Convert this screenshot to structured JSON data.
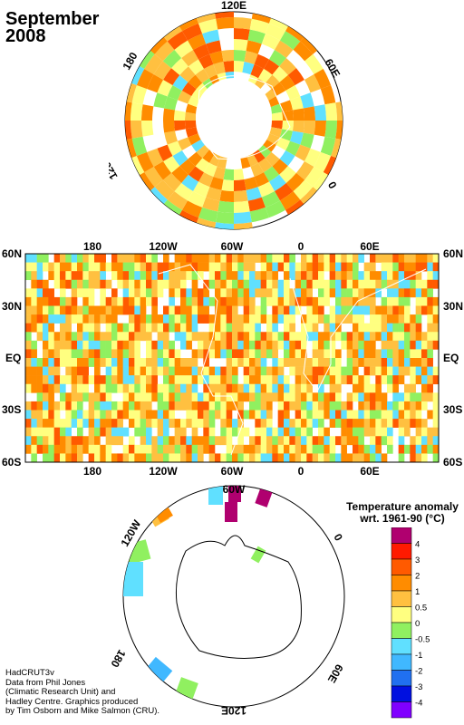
{
  "header": {
    "title_line1": "September",
    "title_line2": "2008"
  },
  "north_polar": {
    "labels": {
      "top": "120E",
      "left": "180",
      "right": "60E",
      "lower_left": "120W",
      "lower_right": "0"
    }
  },
  "equatorial": {
    "lon_labels": [
      "180",
      "120W",
      "60W",
      "0",
      "60E"
    ],
    "lat_labels": [
      "60N",
      "30N",
      "EQ",
      "30S",
      "60S"
    ]
  },
  "south_polar": {
    "labels": {
      "top": "60W",
      "upper_left": "120W",
      "right": "0",
      "lower_left": "180",
      "lower_right": "60E",
      "bottom": "120E"
    }
  },
  "legend": {
    "title_line1": "Temperature anomaly",
    "title_line2": "wrt. 1961-90  (°C)",
    "ticks": [
      "4",
      "3",
      "2",
      "1",
      "0.5",
      "0",
      "-0.5",
      "-1",
      "-2",
      "-3",
      "-4"
    ],
    "colors": [
      "#b0006f",
      "#ff1a00",
      "#ff5a00",
      "#ff8c00",
      "#ffc040",
      "#ffff80",
      "#90f060",
      "#60e0ff",
      "#40b8ff",
      "#2070f0",
      "#0010e0",
      "#8000ff"
    ]
  },
  "credits": {
    "line1": "HadCRUT3v",
    "line2": "Data from Phil Jones",
    "line3": "(Climatic Research Unit) and",
    "line4": "Hadley Centre.  Graphics produced",
    "line5": "by Tim Osborn and Mike Salmon (CRU)."
  }
}
